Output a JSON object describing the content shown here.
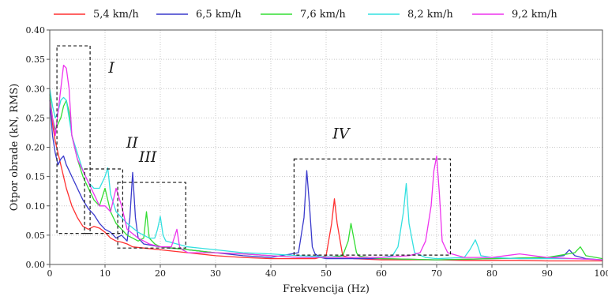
{
  "chart_data": {
    "type": "line",
    "xlabel": "Frekvencija (Hz)",
    "ylabel": "Otpor obrade (kN, RMS)",
    "xlim": [
      0,
      100
    ],
    "ylim": [
      0,
      0.4
    ],
    "xticks": [
      0,
      10,
      20,
      30,
      40,
      50,
      60,
      70,
      80,
      90,
      100
    ],
    "yticks": [
      0.0,
      0.05,
      0.1,
      0.15,
      0.2,
      0.25,
      0.3,
      0.35,
      0.4
    ],
    "ytick_labels": [
      "0.00",
      "0.05",
      "0.10",
      "0.15",
      "0.20",
      "0.25",
      "0.30",
      "0.35",
      "0.40"
    ],
    "grid": true,
    "legend_position": "top",
    "series": [
      {
        "name": "5,4 km/h",
        "color": "#ff3030",
        "x": [
          0,
          0.5,
          1,
          1.5,
          2,
          2.5,
          3,
          4,
          5,
          6,
          7,
          8,
          9,
          10,
          11,
          12,
          13,
          14,
          15,
          17,
          20,
          25,
          30,
          35,
          40,
          45,
          48,
          50,
          51,
          51.5,
          52,
          53,
          55,
          60,
          65,
          70,
          75,
          80,
          85,
          90,
          95,
          100
        ],
        "y": [
          0.29,
          0.24,
          0.21,
          0.19,
          0.17,
          0.15,
          0.13,
          0.1,
          0.08,
          0.065,
          0.06,
          0.065,
          0.062,
          0.055,
          0.045,
          0.04,
          0.038,
          0.035,
          0.03,
          0.028,
          0.025,
          0.02,
          0.015,
          0.012,
          0.01,
          0.01,
          0.01,
          0.015,
          0.07,
          0.112,
          0.07,
          0.015,
          0.01,
          0.008,
          0.008,
          0.008,
          0.007,
          0.007,
          0.007,
          0.006,
          0.006,
          0.006
        ]
      },
      {
        "name": "6,5 km/h",
        "color": "#3a3acc",
        "x": [
          0,
          0.5,
          1,
          1.5,
          2,
          2.5,
          3,
          3.5,
          4,
          5,
          6,
          7,
          8,
          9,
          10,
          11,
          12,
          13,
          14,
          14.5,
          15,
          15.5,
          16,
          17,
          20,
          25,
          30,
          35,
          40,
          45,
          46,
          46.5,
          47,
          47.5,
          48,
          49,
          50,
          55,
          60,
          70,
          80,
          90,
          93,
          94,
          95,
          97,
          100
        ],
        "y": [
          0.28,
          0.22,
          0.19,
          0.17,
          0.18,
          0.185,
          0.17,
          0.16,
          0.15,
          0.13,
          0.11,
          0.095,
          0.085,
          0.07,
          0.06,
          0.055,
          0.045,
          0.05,
          0.04,
          0.08,
          0.157,
          0.08,
          0.045,
          0.035,
          0.03,
          0.025,
          0.02,
          0.015,
          0.012,
          0.02,
          0.08,
          0.16,
          0.1,
          0.03,
          0.018,
          0.012,
          0.01,
          0.01,
          0.01,
          0.008,
          0.01,
          0.012,
          0.015,
          0.025,
          0.015,
          0.01,
          0.008
        ]
      },
      {
        "name": "7,6 km/h",
        "color": "#33dd33",
        "x": [
          0,
          0.5,
          1,
          1.5,
          2,
          2.5,
          3,
          3.5,
          4,
          5,
          6,
          7,
          8,
          9,
          10,
          11,
          12,
          14,
          16,
          17,
          17.5,
          18,
          19,
          20,
          25,
          30,
          35,
          40,
          45,
          50,
          53,
          54,
          54.5,
          55,
          55.5,
          56,
          58,
          60,
          70,
          80,
          90,
          95,
          96,
          97,
          100
        ],
        "y": [
          0.29,
          0.25,
          0.23,
          0.24,
          0.25,
          0.27,
          0.28,
          0.26,
          0.22,
          0.18,
          0.15,
          0.13,
          0.11,
          0.1,
          0.13,
          0.09,
          0.07,
          0.05,
          0.04,
          0.045,
          0.09,
          0.045,
          0.035,
          0.03,
          0.025,
          0.02,
          0.018,
          0.015,
          0.012,
          0.012,
          0.015,
          0.04,
          0.07,
          0.045,
          0.02,
          0.014,
          0.012,
          0.01,
          0.008,
          0.01,
          0.012,
          0.02,
          0.03,
          0.015,
          0.01
        ]
      },
      {
        "name": "8,2 km/h",
        "color": "#33e0e0",
        "x": [
          0,
          0.5,
          1,
          1.5,
          2,
          2.5,
          3,
          3.5,
          4,
          5,
          6,
          7,
          8,
          9,
          10,
          10.5,
          11,
          12,
          14,
          16,
          18,
          19,
          19.5,
          20,
          20.5,
          21,
          23,
          25,
          30,
          35,
          40,
          45,
          50,
          55,
          60,
          62,
          63,
          64,
          64.5,
          65,
          66,
          68,
          70,
          75,
          76,
          77,
          77.5,
          78,
          80,
          85,
          90,
          95,
          100
        ],
        "y": [
          0.3,
          0.27,
          0.25,
          0.26,
          0.28,
          0.285,
          0.28,
          0.25,
          0.22,
          0.19,
          0.16,
          0.14,
          0.13,
          0.13,
          0.15,
          0.165,
          0.12,
          0.09,
          0.07,
          0.055,
          0.045,
          0.045,
          0.06,
          0.082,
          0.05,
          0.04,
          0.035,
          0.03,
          0.025,
          0.02,
          0.018,
          0.015,
          0.013,
          0.012,
          0.012,
          0.015,
          0.03,
          0.09,
          0.138,
          0.07,
          0.02,
          0.012,
          0.01,
          0.012,
          0.025,
          0.042,
          0.03,
          0.015,
          0.012,
          0.01,
          0.01,
          0.01,
          0.008
        ]
      },
      {
        "name": "9,2 km/h",
        "color": "#ee33ee",
        "x": [
          0,
          0.5,
          1,
          1.5,
          2,
          2.5,
          3,
          3.5,
          4,
          5,
          6,
          7,
          8,
          9,
          10,
          11,
          12,
          13,
          14,
          16,
          18,
          20,
          22,
          23,
          23.5,
          24,
          25,
          30,
          35,
          40,
          45,
          50,
          55,
          60,
          65,
          67,
          68,
          69,
          69.5,
          70,
          70.5,
          71,
          72,
          75,
          80,
          85,
          90,
          95,
          100
        ],
        "y": [
          0.28,
          0.25,
          0.22,
          0.26,
          0.3,
          0.34,
          0.335,
          0.3,
          0.22,
          0.18,
          0.16,
          0.14,
          0.12,
          0.1,
          0.1,
          0.09,
          0.13,
          0.1,
          0.06,
          0.045,
          0.035,
          0.03,
          0.03,
          0.06,
          0.03,
          0.025,
          0.02,
          0.02,
          0.018,
          0.015,
          0.012,
          0.012,
          0.012,
          0.012,
          0.015,
          0.02,
          0.04,
          0.1,
          0.16,
          0.185,
          0.12,
          0.04,
          0.02,
          0.012,
          0.012,
          0.018,
          0.012,
          0.01,
          0.008
        ]
      }
    ],
    "regions": [
      {
        "label": "I",
        "x0": 1.3,
        "x1": 7.3,
        "y0": 0.053,
        "y1": 0.373
      },
      {
        "label": "II",
        "x0": 6.3,
        "x1": 13.2,
        "y0": 0.053,
        "y1": 0.163
      },
      {
        "label": "III",
        "x0": 12.3,
        "x1": 24.6,
        "y0": 0.028,
        "y1": 0.14
      },
      {
        "label": "IV",
        "x0": 44.2,
        "x1": 72.5,
        "y0": 0.016,
        "y1": 0.18
      }
    ]
  }
}
